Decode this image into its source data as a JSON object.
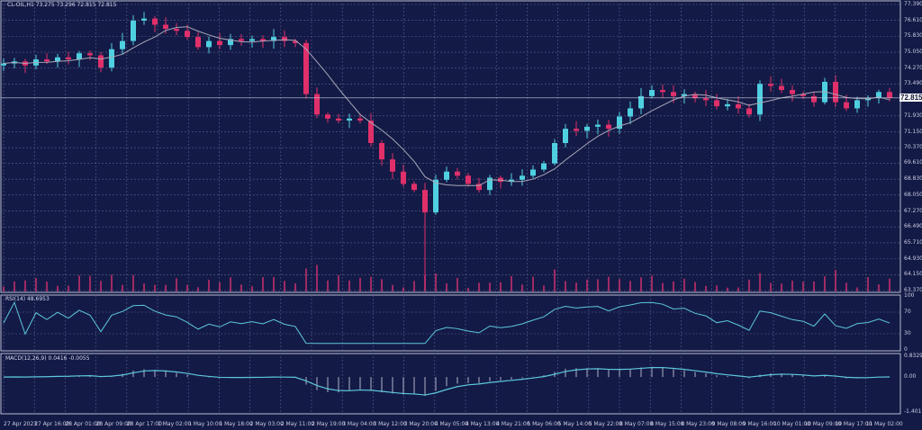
{
  "header": {
    "symbol_line": "CL-OIL,H1  73.275 73.296 72.815 72.815"
  },
  "colors": {
    "background": "#141a46",
    "bull": "#4fd0e0",
    "bear": "#e0306a",
    "ma": "#a8a8b8",
    "volume": "#c0306a",
    "indicator": "#5cc8dc",
    "grid": "#5a6090"
  },
  "price_axis": [
    "77.390",
    "76.610",
    "75.830",
    "75.050",
    "74.270",
    "73.490",
    "71.930",
    "71.150",
    "70.370",
    "69.610",
    "68.830",
    "68.050",
    "67.270",
    "66.490",
    "65.710",
    "64.930",
    "64.150",
    "63.370"
  ],
  "current_price": "72.815",
  "rsi": {
    "label": "RSI(14) 48.6953",
    "axis": [
      "100",
      "70",
      "30",
      "0"
    ]
  },
  "macd": {
    "label": "MACD(12,26,9) 0.0416 -0.0055",
    "axis": [
      "0.8329",
      "0.00",
      "-1.4011"
    ]
  },
  "time_axis": [
    "27 Apr 2023",
    "27 Apr 16:00",
    "28 Apr 01:00",
    "28 Apr 09:00",
    "28 Apr 17:00",
    "1 May 02:00",
    "1 May 10:00",
    "1 May 18:00",
    "2 May 03:00",
    "2 May 11:00",
    "2 May 19:00",
    "3 May 04:00",
    "3 May 12:00",
    "3 May 20:00",
    "4 May 05:00",
    "4 May 13:00",
    "4 May 21:00",
    "5 May 06:00",
    "5 May 14:00",
    "5 May 22:00",
    "8 May 07:00",
    "8 May 15:00",
    "8 May 23:00",
    "9 May 08:00",
    "9 May 16:00",
    "10 May 01:00",
    "10 May 09:00",
    "10 May 17:00",
    "11 May 02:00"
  ],
  "chart_data": {
    "type": "candlestick",
    "ylim": [
      63.37,
      77.39
    ],
    "grid": true,
    "closes": [
      74.5,
      74.6,
      74.4,
      74.7,
      74.6,
      74.8,
      74.7,
      75.0,
      74.9,
      74.3,
      75.2,
      75.6,
      76.6,
      76.7,
      76.4,
      76.2,
      76.1,
      75.8,
      75.3,
      75.6,
      75.4,
      75.7,
      75.6,
      75.7,
      75.6,
      75.8,
      75.6,
      75.5,
      73.0,
      72.0,
      71.8,
      71.7,
      71.8,
      71.7,
      70.6,
      69.8,
      69.2,
      68.6,
      68.3,
      67.2,
      68.8,
      69.2,
      69.0,
      68.6,
      68.3,
      68.9,
      68.7,
      68.8,
      69.0,
      69.3,
      69.6,
      70.6,
      71.3,
      71.2,
      71.4,
      71.5,
      71.3,
      71.9,
      72.3,
      72.9,
      73.2,
      73.1,
      72.9,
      73.0,
      72.8,
      72.7,
      72.4,
      72.5,
      72.3,
      72.0,
      73.5,
      73.4,
      73.2,
      73.0,
      72.9,
      72.6,
      73.6,
      72.6,
      72.3,
      72.7,
      72.8,
      73.1,
      72.815
    ],
    "extreme_low": {
      "index": 39,
      "value": 63.4
    }
  }
}
